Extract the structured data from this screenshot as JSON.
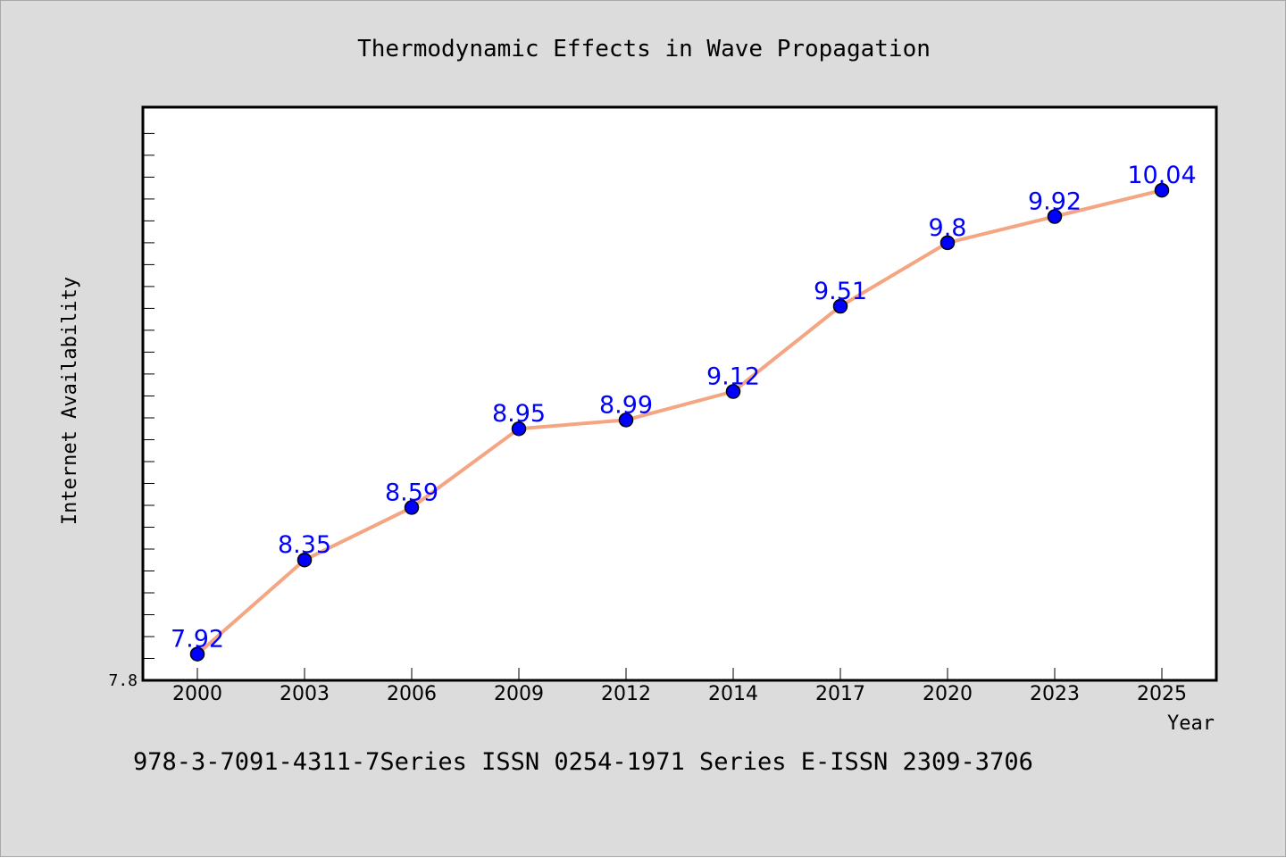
{
  "chart_data": {
    "type": "line",
    "title": "Thermodynamic Effects in Wave Propagation",
    "xlabel": "Year",
    "ylabel": "Internet Availability",
    "categories": [
      "2000",
      "2003",
      "2006",
      "2009",
      "2012",
      "2014",
      "2017",
      "2020",
      "2023",
      "2025"
    ],
    "series": [
      {
        "values": [
          7.92,
          8.35,
          8.59,
          8.95,
          8.99,
          9.12,
          9.51,
          9.8,
          9.92,
          10.04
        ]
      }
    ],
    "data_labels": [
      "7.92",
      "8.35",
      "8.59",
      "8.95",
      "8.99",
      "9.12",
      "9.51",
      "9.8",
      "9.92",
      "10.04"
    ],
    "ylim": [
      7.8,
      10.42
    ],
    "y_ticklabels": [
      "7.8"
    ],
    "grid": false,
    "legend": "none",
    "colors": {
      "line": "#f4a582",
      "marker": "#0000ff",
      "data_label": "#0000ff",
      "background": "#dcdcdc",
      "plot_bg": "#ffffff"
    }
  },
  "footer_text": "978-3-7091-4311-7Series ISSN 0254-1971 Series E-ISSN 2309-3706"
}
